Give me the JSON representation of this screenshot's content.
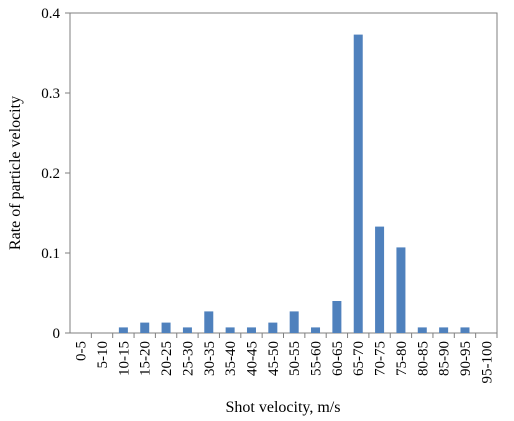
{
  "chart_data": {
    "type": "bar",
    "title": "",
    "xlabel": "Shot velocity, m/s",
    "ylabel": "Rate of particle velocity",
    "categories": [
      "0-5",
      "5-10",
      "10-15",
      "15-20",
      "20-25",
      "25-30",
      "30-35",
      "35-40",
      "40-45",
      "45-50",
      "50-55",
      "55-60",
      "60-65",
      "65-70",
      "70-75",
      "75-80",
      "80-85",
      "85-90",
      "90-95",
      "95-100"
    ],
    "values": [
      0,
      0,
      0.007,
      0.013,
      0.013,
      0.007,
      0.027,
      0.007,
      0.007,
      0.013,
      0.027,
      0.007,
      0.04,
      0.373,
      0.133,
      0.107,
      0.007,
      0.007,
      0.007,
      0
    ],
    "ylim": [
      0,
      0.4
    ],
    "yticks": [
      0,
      0.1,
      0.2,
      0.3,
      0.4
    ],
    "ytick_labels": [
      "0",
      "0.1",
      "0.2",
      "0.3",
      "0.4"
    ],
    "grid": false,
    "legend": "none",
    "bar_color": "#4F81BD",
    "frame_color": "#7f7f7f"
  }
}
